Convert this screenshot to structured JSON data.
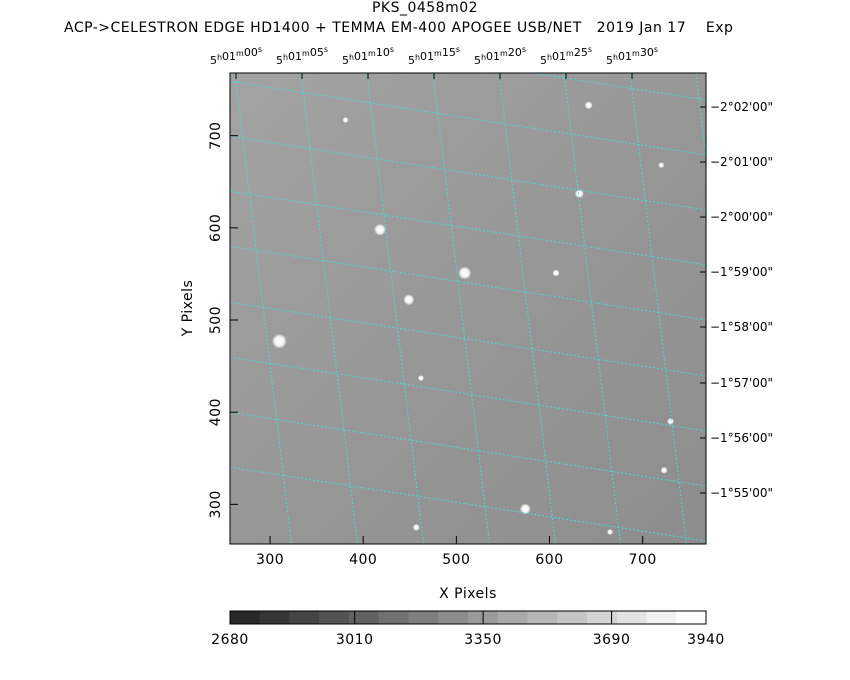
{
  "title": "PKS_0458m02",
  "subtitle": "ACP->CELESTRON EDGE HD1400 + TEMMA EM-400 APOGEE USB/NET   2019 Jan 17    Exp",
  "chart_data": {
    "type": "image",
    "xlabel": "X Pixels",
    "ylabel": "Y Pixels",
    "xlim": [
      257,
      768
    ],
    "ylim": [
      257,
      768
    ],
    "x_ticks": [
      300,
      400,
      500,
      600,
      700
    ],
    "y_ticks": [
      300,
      400,
      500,
      600,
      700
    ],
    "ra_ticks": [
      {
        "h": "5",
        "m": "01",
        "s": "00"
      },
      {
        "h": "5",
        "m": "01",
        "s": "05"
      },
      {
        "h": "5",
        "m": "01",
        "s": "10"
      },
      {
        "h": "5",
        "m": "01",
        "s": "15"
      },
      {
        "h": "5",
        "m": "01",
        "s": "20"
      },
      {
        "h": "5",
        "m": "01",
        "s": "25"
      },
      {
        "h": "5",
        "m": "01",
        "s": "30"
      }
    ],
    "dec_ticks": [
      "−2°02'00\"",
      "−2°01'00\"",
      "−2°00'00\"",
      "−1°59'00\"",
      "−1°58'00\"",
      "−1°57'00\"",
      "−1°56'00\"",
      "−1°55'00\""
    ],
    "colorbar": {
      "min": 2680,
      "max": 3940,
      "labels": [
        2680,
        3010,
        3350,
        3690,
        3940
      ]
    },
    "stars": [
      {
        "x": 310,
        "y": 477,
        "r": 6
      },
      {
        "x": 418,
        "y": 598,
        "r": 4.5
      },
      {
        "x": 509,
        "y": 551,
        "r": 5
      },
      {
        "x": 449,
        "y": 522,
        "r": 4
      },
      {
        "x": 574,
        "y": 295,
        "r": 4
      },
      {
        "x": 632,
        "y": 637,
        "r": 3
      },
      {
        "x": 607,
        "y": 551,
        "r": 2
      },
      {
        "x": 642,
        "y": 733,
        "r": 2.5
      },
      {
        "x": 720,
        "y": 668,
        "r": 1.5
      },
      {
        "x": 730,
        "y": 390,
        "r": 2
      },
      {
        "x": 723,
        "y": 337,
        "r": 2
      },
      {
        "x": 462,
        "y": 437,
        "r": 1.5
      },
      {
        "x": 457,
        "y": 275,
        "r": 2
      },
      {
        "x": 665,
        "y": 270,
        "r": 1.5
      },
      {
        "x": 381,
        "y": 717,
        "r": 1.5
      }
    ]
  }
}
